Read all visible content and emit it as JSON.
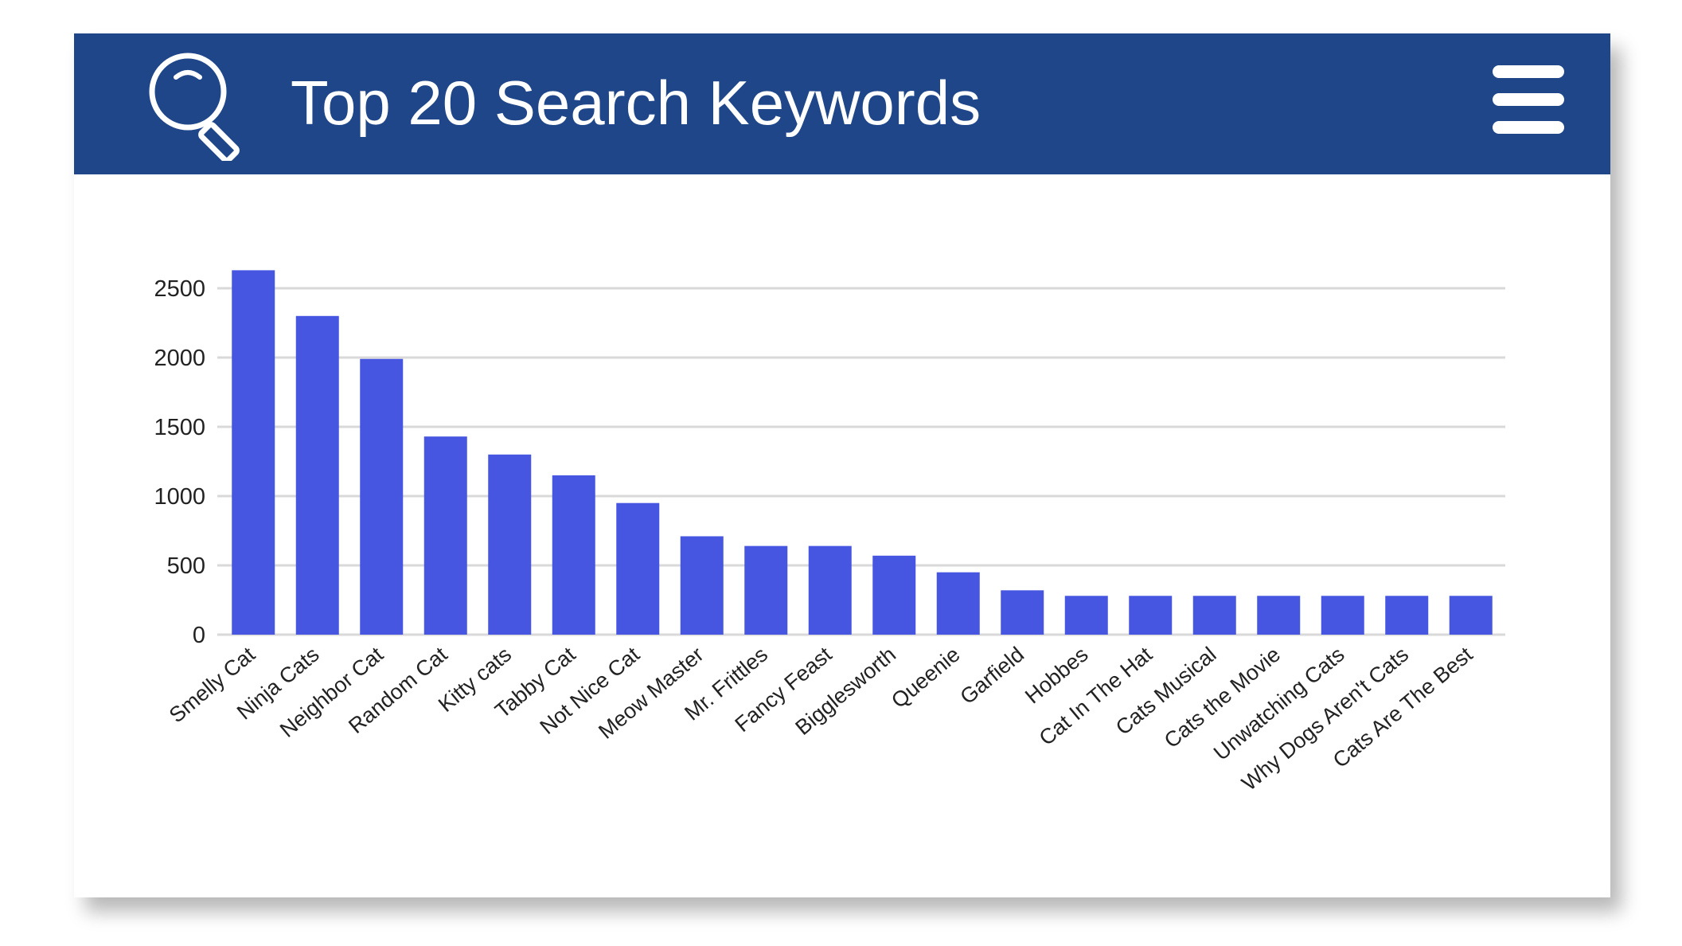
{
  "header": {
    "title": "Top 20 Search Keywords",
    "background_color": "#1e4689",
    "left_icon": "search-icon",
    "right_icon": "menu-icon"
  },
  "chart_data": {
    "type": "bar",
    "title": "Top 20 Search Keywords",
    "xlabel": "",
    "ylabel": "",
    "ylim": [
      0,
      2500
    ],
    "yticks": [
      0,
      500,
      1000,
      1500,
      2000,
      2500
    ],
    "grid": true,
    "bar_color": "#4656e0",
    "categories": [
      "Smelly Cat",
      "Ninja Cats",
      "Neighbor Cat",
      "Random Cat",
      "Kitty cats",
      "Tabby Cat",
      "Not Nice Cat",
      "Meow Master",
      "Mr. Frittles",
      "Fancy Feast",
      "Bigglesworth",
      "Queenie",
      "Garfield",
      "Hobbes",
      "Cat In The Hat",
      "Cats Musical",
      "Cats the Movie",
      "Unwatching Cats",
      "Why Dogs Aren't Cats",
      "Cats Are The Best"
    ],
    "values": [
      2630,
      2300,
      1990,
      1430,
      1300,
      1150,
      950,
      710,
      640,
      640,
      570,
      450,
      320,
      280,
      280,
      280,
      280,
      280,
      280,
      280
    ]
  }
}
